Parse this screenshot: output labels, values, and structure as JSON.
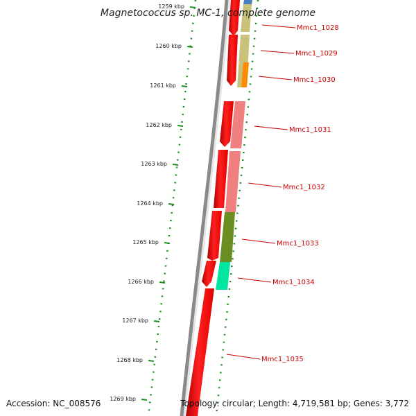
{
  "title": "Magnetococcus sp. MC-1, complete genome",
  "footer": {
    "accession": "Accession: NC_008576",
    "topology": "Topology: circular; Length: 4,719,581 bp; Genes: 3,772"
  },
  "ruler": {
    "ticks": [
      "1259 kbp",
      "1260 kbp",
      "1261 kbp",
      "1262 kbp",
      "1263 kbp",
      "1264 kbp",
      "1265 kbp",
      "1266 kbp",
      "1267 kbp",
      "1268 kbp",
      "1269 kbp"
    ]
  },
  "genes": [
    {
      "name": "Mmc1_1028",
      "color": "#c8c27a",
      "accent": "#4a7fc0"
    },
    {
      "name": "Mmc1_1029",
      "color": "#c8c27a"
    },
    {
      "name": "Mmc1_1030",
      "color": "#ff8c00"
    },
    {
      "name": "Mmc1_1031",
      "color": "#f08080"
    },
    {
      "name": "Mmc1_1032",
      "color": "#f08080"
    },
    {
      "name": "Mmc1_1033",
      "color": "#6b8e23"
    },
    {
      "name": "Mmc1_1034",
      "color": "#00e5a0"
    },
    {
      "name": "Mmc1_1035",
      "color": "#ff0000"
    }
  ],
  "colors": {
    "strand": "#ff0000",
    "backbone": "#777777",
    "ruler": "#1e8c1e",
    "label": "#cc0000"
  }
}
